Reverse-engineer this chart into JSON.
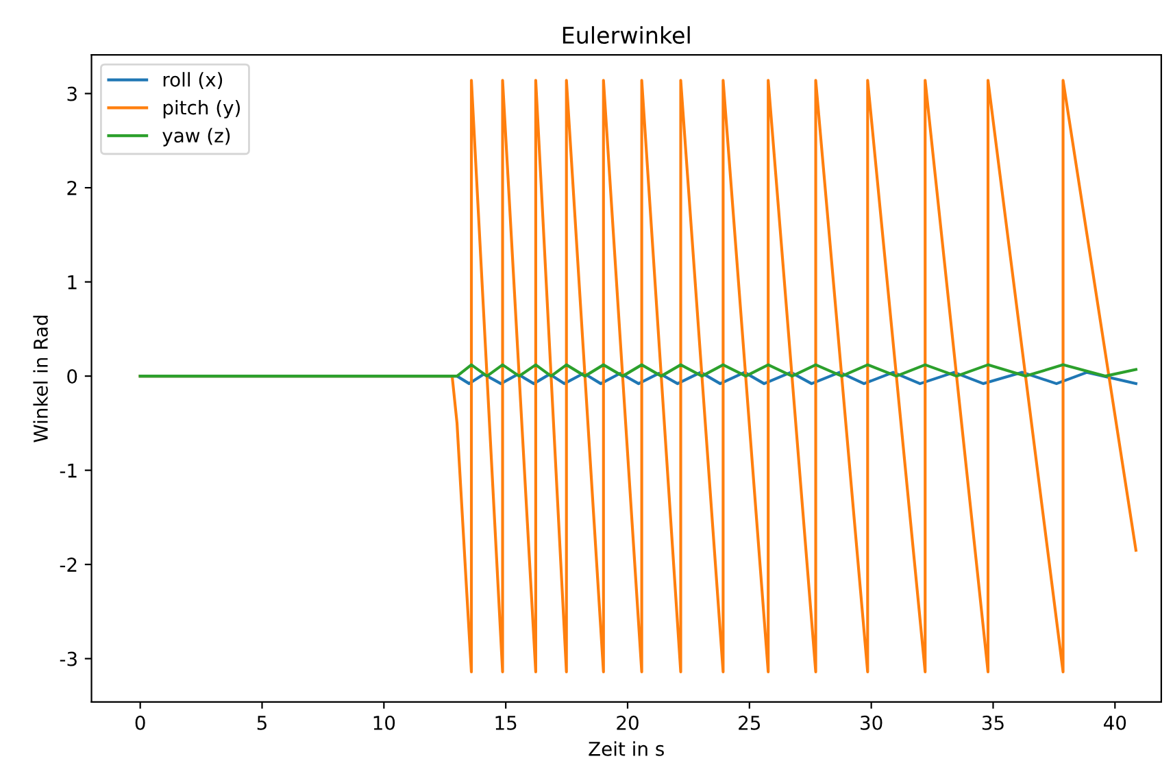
{
  "chart_data": {
    "type": "line",
    "title": "Eulerwinkel",
    "xlabel": "Zeit in s",
    "ylabel": "Winkel in Rad",
    "xlim": [
      -2.0,
      41.9
    ],
    "ylim": [
      -3.46,
      3.41
    ],
    "xticks": [
      0,
      5,
      10,
      15,
      20,
      25,
      30,
      35,
      40
    ],
    "yticks": [
      -3,
      -2,
      -1,
      0,
      1,
      2,
      3
    ],
    "grid": false,
    "legend": "top left",
    "marker": "none",
    "line_style": "solid",
    "series": [
      {
        "name": "roll (x)",
        "color": "#1f77b4",
        "x": [
          0,
          13.0,
          13.5,
          14.1,
          14.8,
          15.5,
          16.15,
          16.8,
          17.4,
          18.2,
          18.9,
          19.7,
          20.45,
          21.3,
          22.05,
          23.0,
          23.8,
          24.8,
          25.6,
          26.7,
          27.55,
          28.7,
          29.7,
          30.9,
          32.0,
          33.4,
          34.6,
          36.2,
          37.6,
          38.85,
          40.86
        ],
        "values": [
          0,
          0,
          -0.08,
          0.02,
          -0.08,
          0.02,
          -0.08,
          0.02,
          -0.08,
          0.03,
          -0.08,
          0.03,
          -0.08,
          0.03,
          -0.08,
          0.04,
          -0.08,
          0.04,
          -0.08,
          0.04,
          -0.08,
          0.04,
          -0.08,
          0.04,
          -0.08,
          0.04,
          -0.08,
          0.04,
          -0.08,
          0.04,
          -0.08
        ]
      },
      {
        "name": "pitch (y)",
        "color": "#ff7f0e",
        "x": [
          0,
          12.8,
          13.0,
          13.2,
          13.4,
          13.59,
          13.59,
          14.87,
          14.87,
          16.23,
          16.23,
          17.49,
          17.49,
          19.01,
          19.01,
          20.58,
          20.58,
          22.18,
          22.18,
          23.92,
          23.92,
          25.77,
          25.77,
          27.72,
          27.72,
          29.85,
          29.85,
          32.21,
          32.21,
          34.79,
          34.79,
          37.87,
          37.87,
          40.86
        ],
        "values": [
          0,
          0,
          -0.5,
          -1.4,
          -2.3,
          -3.14,
          3.14,
          -3.14,
          3.14,
          -3.14,
          3.14,
          -3.14,
          3.14,
          -3.14,
          3.14,
          -3.14,
          3.14,
          -3.14,
          3.14,
          -3.14,
          3.14,
          -3.14,
          3.14,
          -3.14,
          3.14,
          -3.14,
          3.14,
          -3.14,
          3.14,
          -3.14,
          3.14,
          -3.14,
          3.14,
          -1.85
        ]
      },
      {
        "name": "yaw (z)",
        "color": "#2ca02c",
        "x": [
          0,
          13.0,
          13.59,
          14.23,
          14.87,
          15.55,
          16.23,
          16.86,
          17.49,
          18.25,
          19.01,
          19.8,
          20.58,
          21.38,
          22.18,
          23.05,
          23.92,
          24.85,
          25.77,
          26.75,
          27.72,
          28.79,
          29.85,
          31.03,
          32.21,
          33.5,
          34.79,
          36.33,
          37.87,
          39.6,
          40.86
        ],
        "values": [
          0,
          0,
          0.12,
          0,
          0.12,
          0,
          0.12,
          0,
          0.12,
          0,
          0.12,
          0,
          0.12,
          0,
          0.12,
          0,
          0.12,
          0,
          0.12,
          0,
          0.12,
          0,
          0.12,
          0,
          0.12,
          0,
          0.12,
          0,
          0.12,
          0,
          0.07
        ]
      }
    ]
  }
}
